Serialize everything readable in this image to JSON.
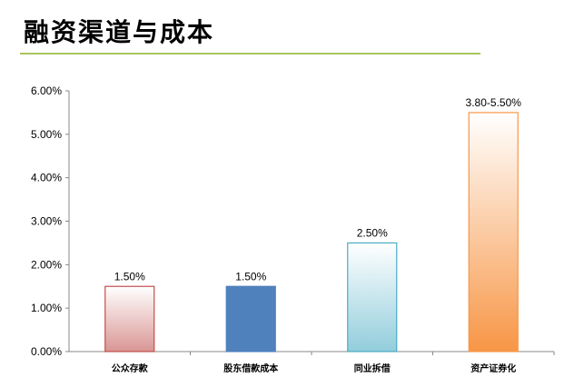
{
  "page": {
    "title": "融资渠道与成本",
    "rule_color": "#a9c45f"
  },
  "chart_data": {
    "type": "bar",
    "title": "",
    "xlabel": "",
    "ylabel": "",
    "ylim": [
      0,
      6
    ],
    "yticks": [
      "0.00%",
      "1.00%",
      "2.00%",
      "3.00%",
      "4.00%",
      "5.00%",
      "6.00%"
    ],
    "grid": false,
    "categories": [
      "公众存款",
      "股东借款成本",
      "同业拆借",
      "资产证券化"
    ],
    "values": [
      1.5,
      1.5,
      2.5,
      5.5
    ],
    "data_labels": [
      "1.50%",
      "1.50%",
      "2.50%",
      "3.80-5.50%"
    ],
    "bar_styles": [
      {
        "edge": "#c0504d",
        "top": "#ffffff",
        "bottom": "#d99694"
      },
      {
        "edge": "#4f81bd",
        "top": "#4f81bd",
        "bottom": "#4f81bd"
      },
      {
        "edge": "#4bacc6",
        "top": "#ffffff",
        "bottom": "#92cddc"
      },
      {
        "edge": "#f79646",
        "top": "#ffffff",
        "bottom": "#f79646"
      }
    ]
  }
}
